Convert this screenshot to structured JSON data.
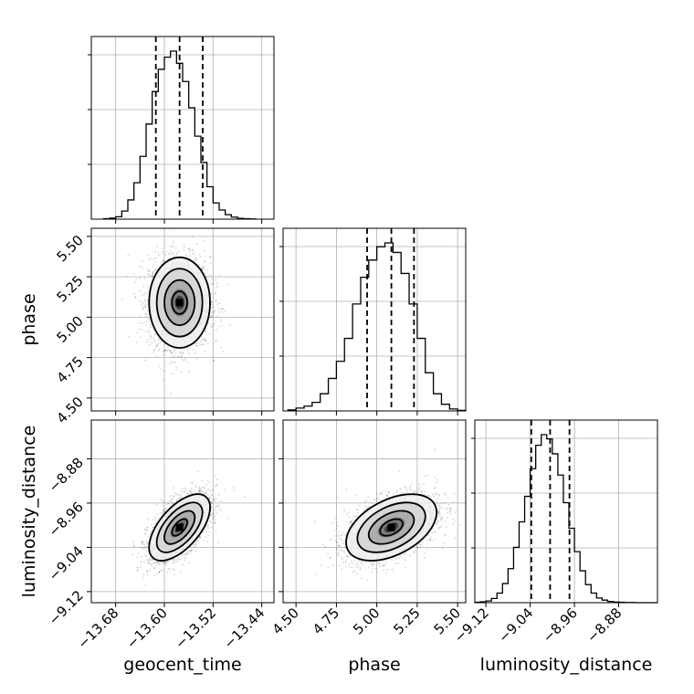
{
  "chart_data": {
    "type": "corner",
    "title": "",
    "parameters": [
      "geocent_time",
      "phase",
      "luminosity_distance"
    ],
    "labels": {
      "geocent_time": "geocent_time",
      "phase": "phase",
      "luminosity_distance": "luminosity_distance"
    },
    "ranges": {
      "geocent_time": [
        -13.72,
        -13.42
      ],
      "phase": [
        4.42,
        5.55
      ],
      "luminosity_distance": [
        -9.14,
        -8.81
      ]
    },
    "ticks": {
      "geocent_time": [
        -13.68,
        -13.6,
        -13.52,
        -13.44
      ],
      "phase": [
        4.5,
        4.75,
        5.0,
        5.25,
        5.5
      ],
      "luminosity_distance": [
        -9.12,
        -9.04,
        -8.96,
        -8.88
      ]
    },
    "tick_labels": {
      "geocent_time": [
        "−13.68",
        "−13.60",
        "−13.52",
        "−13.44"
      ],
      "phase": [
        "4.50",
        "4.75",
        "5.00",
        "5.25",
        "5.50"
      ],
      "luminosity_distance": [
        "−9.12",
        "−9.04",
        "−8.96",
        "−8.88"
      ]
    },
    "quantiles": {
      "geocent_time": [
        -13.614,
        -13.575,
        -13.537
      ],
      "phase": [
        4.94,
        5.09,
        5.23
      ],
      "luminosity_distance": [
        -9.038,
        -9.004,
        -8.969
      ]
    },
    "histograms": {
      "geocent_time": {
        "edges": [
          -13.7,
          -13.69,
          -13.68,
          -13.67,
          -13.66,
          -13.65,
          -13.64,
          -13.63,
          -13.62,
          -13.61,
          -13.6,
          -13.59,
          -13.58,
          -13.57,
          -13.56,
          -13.55,
          -13.54,
          -13.53,
          -13.52,
          -13.51,
          -13.5,
          -13.49,
          -13.48,
          -13.47,
          -13.46,
          -13.45
        ],
        "counts": [
          2,
          5,
          12,
          40,
          95,
          180,
          310,
          470,
          630,
          740,
          800,
          830,
          770,
          680,
          550,
          410,
          280,
          160,
          80,
          45,
          22,
          10,
          4,
          2,
          1
        ]
      },
      "phase": {
        "edges": [
          4.45,
          4.5,
          4.55,
          4.6,
          4.65,
          4.7,
          4.75,
          4.8,
          4.85,
          4.9,
          4.95,
          5.0,
          5.05,
          5.1,
          5.15,
          5.2,
          5.25,
          5.3,
          5.35,
          5.4,
          5.45,
          5.5,
          5.55
        ],
        "counts": [
          5,
          15,
          25,
          45,
          90,
          170,
          260,
          380,
          560,
          700,
          790,
          860,
          880,
          830,
          720,
          560,
          380,
          200,
          90,
          35,
          10,
          3
        ]
      },
      "luminosity_distance": {
        "edges": [
          -9.14,
          -9.13,
          -9.12,
          -9.11,
          -9.1,
          -9.09,
          -9.08,
          -9.07,
          -9.06,
          -9.05,
          -9.04,
          -9.03,
          -9.02,
          -9.01,
          -9.0,
          -8.99,
          -8.98,
          -8.97,
          -8.96,
          -8.95,
          -8.94,
          -8.93,
          -8.92,
          -8.91,
          -8.9,
          -8.89,
          -8.88,
          -8.87,
          -8.86,
          -8.85,
          -8.84,
          -8.83,
          -8.82,
          -8.81
        ],
        "counts": [
          2,
          4,
          8,
          20,
          45,
          90,
          160,
          260,
          380,
          500,
          630,
          740,
          790,
          770,
          700,
          600,
          470,
          350,
          240,
          150,
          85,
          45,
          22,
          12,
          6,
          3,
          2,
          1,
          1,
          0,
          0,
          0,
          0
        ]
      }
    },
    "pairs": [
      {
        "x": "geocent_time",
        "y": "phase",
        "mean": [
          -13.575,
          5.09
        ],
        "sd": [
          0.025,
          0.14
        ],
        "correlation": 0.0
      },
      {
        "x": "geocent_time",
        "y": "luminosity_distance",
        "mean": [
          -13.575,
          -9.004
        ],
        "sd": [
          0.025,
          0.03
        ],
        "correlation": 0.6
      },
      {
        "x": "phase",
        "y": "luminosity_distance",
        "mean": [
          5.09,
          -9.004
        ],
        "sd": [
          0.14,
          0.03
        ],
        "correlation": 0.45
      }
    ],
    "contour_levels": [
      0.118,
      0.393,
      0.675,
      0.865
    ],
    "grid": true,
    "colors": {
      "line": "#000000",
      "grid": "#b0b0b0",
      "points": "#000000"
    }
  }
}
